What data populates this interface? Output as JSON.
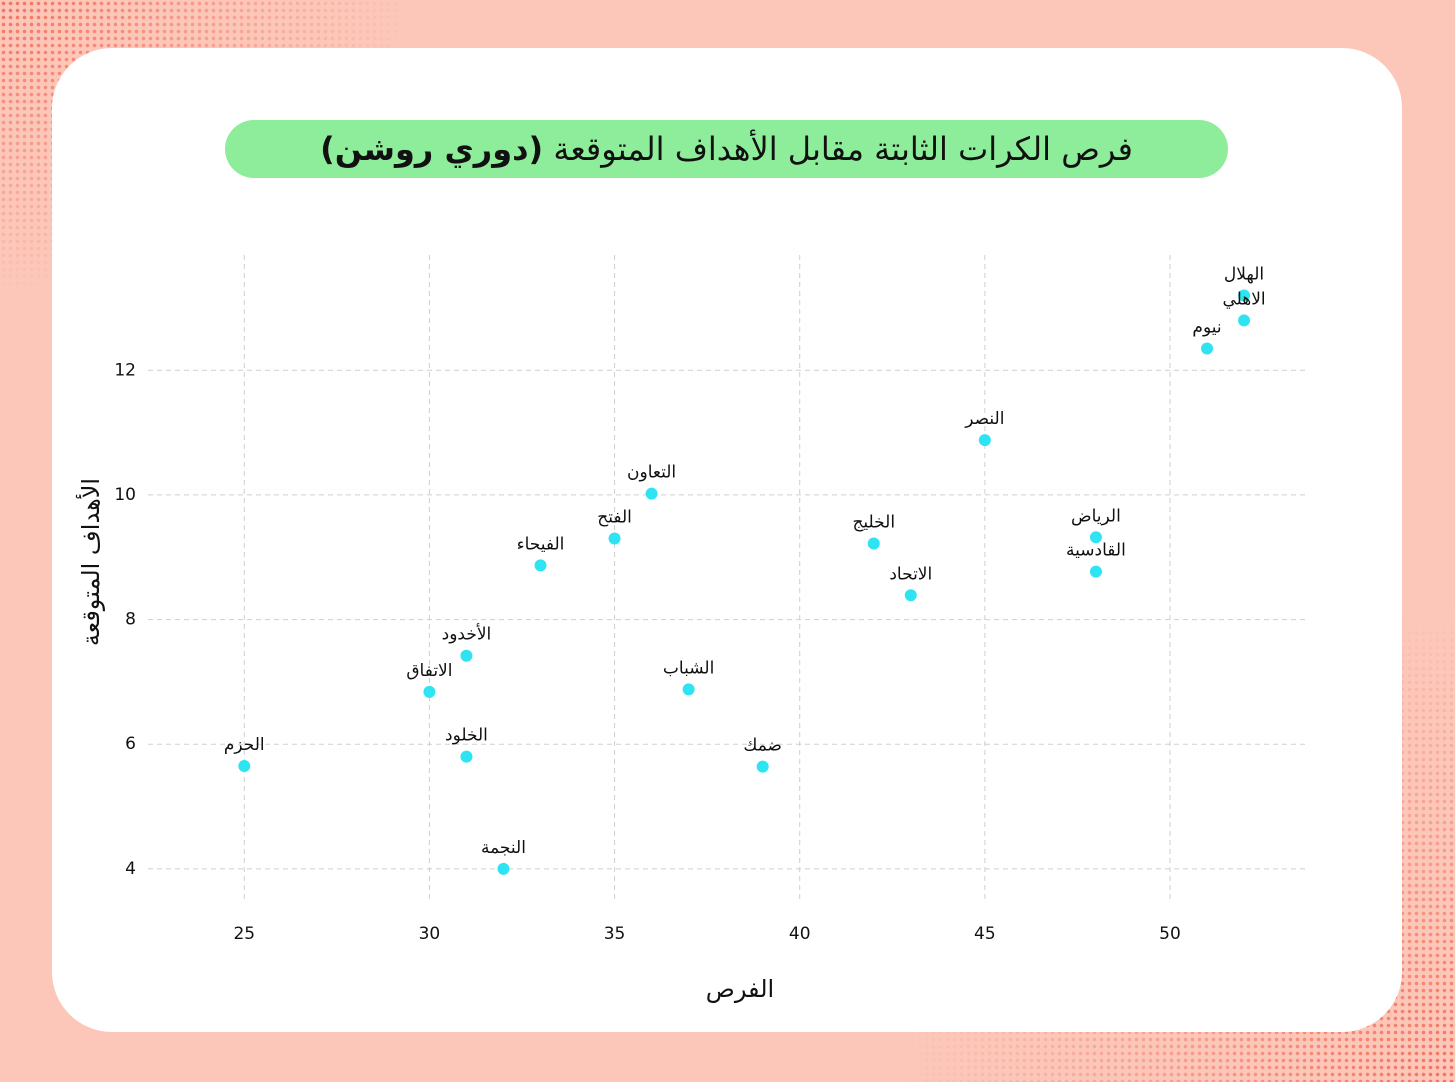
{
  "chart_data": {
    "type": "scatter",
    "title": "فرص الكرات الثابتة مقابل الأهداف المتوقعة",
    "title_emphasis": "(دوري روشن)",
    "x_label": "الفرص",
    "y_label": "الأهداف المتوقعة",
    "labels": [
      "الهلال",
      "الاهلي",
      "نيوم",
      "النصر",
      "التعاون",
      "الفتح",
      "الخليج",
      "الرياض",
      "القادسية",
      "الفيحاء",
      "الاتحاد",
      "الأخدود",
      "الشباب",
      "الاتفاق",
      "الخلود",
      "ضمك",
      "الحزم",
      "النجمة"
    ],
    "x": [
      52,
      52,
      51,
      45,
      36,
      35,
      42,
      48,
      48,
      33,
      43,
      31,
      37,
      30,
      31,
      39,
      25,
      32
    ],
    "values": [
      13.2,
      12.8,
      12.35,
      10.88,
      10.02,
      9.3,
      9.22,
      9.32,
      8.77,
      8.87,
      8.39,
      7.42,
      6.88,
      6.84,
      5.8,
      5.64,
      5.65,
      4.0
    ],
    "color": "#2ee3f2",
    "xlim": [
      22.4,
      53.7
    ],
    "ylim": [
      3.5,
      13.85
    ],
    "xticks": [
      25,
      30,
      35,
      40,
      45,
      50
    ],
    "yticks": [
      4,
      6,
      8,
      10,
      12
    ],
    "grid": true
  }
}
